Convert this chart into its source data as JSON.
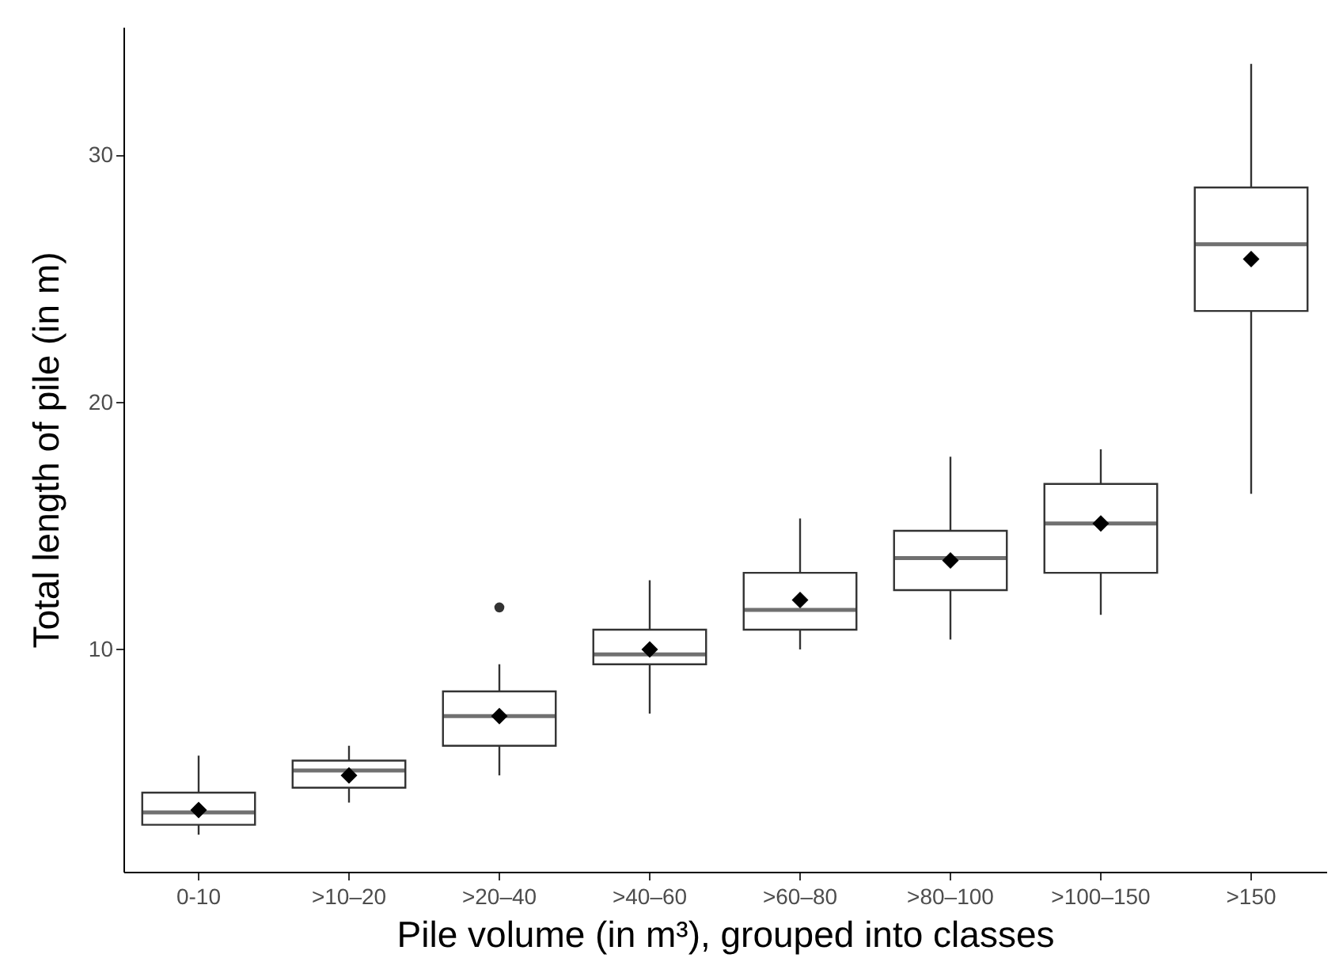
{
  "chart_data": {
    "type": "box",
    "xlabel": "Pile volume (in m³), grouped into classes",
    "ylabel": "Total length of pile (in m)",
    "categories": [
      "0-10",
      ">10–20",
      ">20–40",
      ">40–60",
      ">60–80",
      ">80–100",
      ">100–150",
      ">150"
    ],
    "boxes": [
      {
        "low": 2.5,
        "q1": 2.9,
        "median": 3.4,
        "q3": 4.2,
        "high": 5.7,
        "mean": 3.5
      },
      {
        "low": 3.8,
        "q1": 4.4,
        "median": 5.1,
        "q3": 5.5,
        "high": 6.1,
        "mean": 4.9
      },
      {
        "low": 4.9,
        "q1": 6.1,
        "median": 7.3,
        "q3": 8.3,
        "high": 9.4,
        "mean": 7.3,
        "outliers": [
          11.7
        ]
      },
      {
        "low": 7.4,
        "q1": 9.4,
        "median": 9.8,
        "q3": 10.8,
        "high": 12.8,
        "mean": 10.0
      },
      {
        "low": 10.0,
        "q1": 10.8,
        "median": 11.6,
        "q3": 13.1,
        "high": 15.3,
        "mean": 12.0
      },
      {
        "low": 10.4,
        "q1": 12.4,
        "median": 13.7,
        "q3": 14.8,
        "high": 17.8,
        "mean": 13.6
      },
      {
        "low": 11.4,
        "q1": 13.1,
        "median": 15.1,
        "q3": 16.7,
        "high": 18.1,
        "mean": 15.1
      },
      {
        "low": 16.3,
        "q1": 23.7,
        "median": 26.4,
        "q3": 28.7,
        "high": 33.7,
        "mean": 25.8
      }
    ],
    "ylim": [
      1,
      35.2
    ],
    "yticks": [
      10,
      20,
      30
    ],
    "grid": false
  }
}
